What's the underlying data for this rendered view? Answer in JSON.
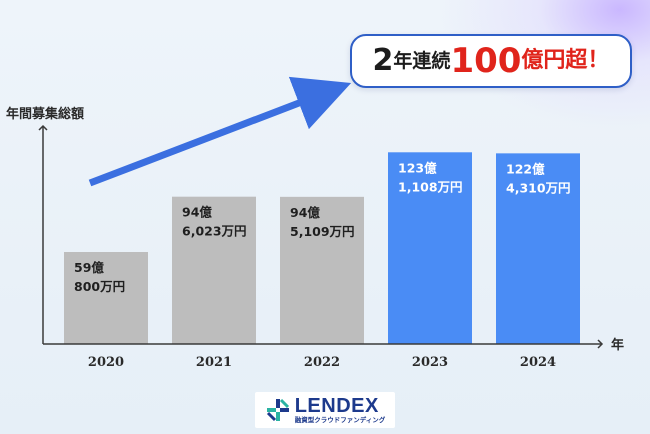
{
  "chart_data": {
    "type": "bar",
    "ylabel": "年間募集総額",
    "xlabel": "年",
    "categories": [
      "2020",
      "2021",
      "2022",
      "2023",
      "2024"
    ],
    "values": [
      59.08,
      94.6023,
      94.5109,
      123.1108,
      122.431
    ],
    "value_labels": [
      [
        "59億",
        "800万円"
      ],
      [
        "94億",
        "6,023万円"
      ],
      [
        "94億",
        "5,109万円"
      ],
      [
        "123億",
        "1,108万円"
      ],
      [
        "122億",
        "4,310万円"
      ]
    ],
    "ylim": [
      0,
      140
    ],
    "grid": false,
    "colors": [
      "#bdbdbd",
      "#bdbdbd",
      "#bdbdbd",
      "#4a8cf5",
      "#4a8cf5"
    ]
  },
  "banner": {
    "num1": "2",
    "text1": "年連続",
    "num2": "100",
    "text2": "億円超！"
  },
  "logo": {
    "name": "LENDEX",
    "sub": "融資型クラウドファンディング",
    "icon": "lendex-logo-icon"
  }
}
